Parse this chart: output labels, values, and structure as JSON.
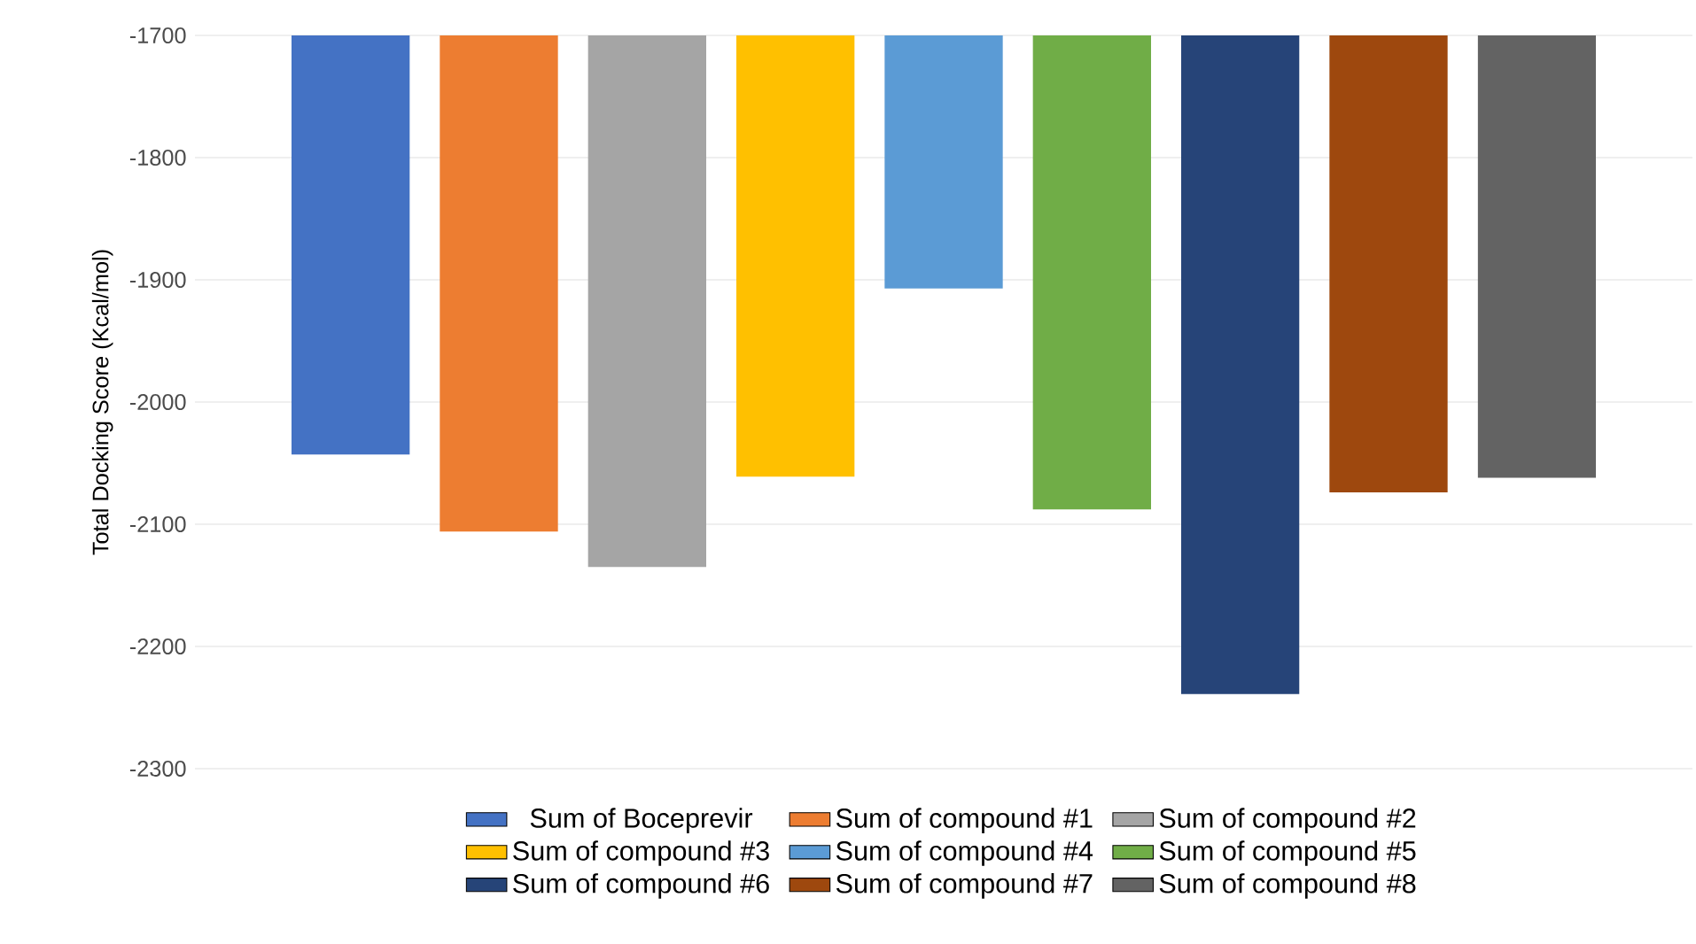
{
  "chart_data": {
    "type": "bar",
    "ylabel": "Total Docking Score (Kcal/mol)",
    "categories": [
      null
    ],
    "series": [
      {
        "name": "Sum of Boceprevir",
        "color": "#4472c4",
        "values": [
          -2043
        ]
      },
      {
        "name": "Sum of compound #1",
        "color": "#ed7d31",
        "values": [
          -2106
        ]
      },
      {
        "name": "Sum of compound #2",
        "color": "#a5a5a5",
        "values": [
          -2135
        ]
      },
      {
        "name": "Sum of compound #3",
        "color": "#ffc000",
        "values": [
          -2061
        ]
      },
      {
        "name": "Sum of compound #4",
        "color": "#5b9bd5",
        "values": [
          -1907
        ]
      },
      {
        "name": "Sum of compound #5",
        "color": "#70ad47",
        "values": [
          -2088
        ]
      },
      {
        "name": "Sum of compound #6",
        "color": "#264478",
        "values": [
          -2239
        ]
      },
      {
        "name": "Sum of compound #7",
        "color": "#9e480e",
        "values": [
          -2074
        ]
      },
      {
        "name": "Sum of compound #8",
        "color": "#636363",
        "values": [
          -2062
        ]
      }
    ],
    "ylim": [
      -2300,
      -1700
    ],
    "yticks": [
      -2300,
      -2200,
      -2100,
      -2000,
      -1900,
      -1800,
      -1700
    ],
    "grid": "y",
    "legend": "bottom"
  }
}
